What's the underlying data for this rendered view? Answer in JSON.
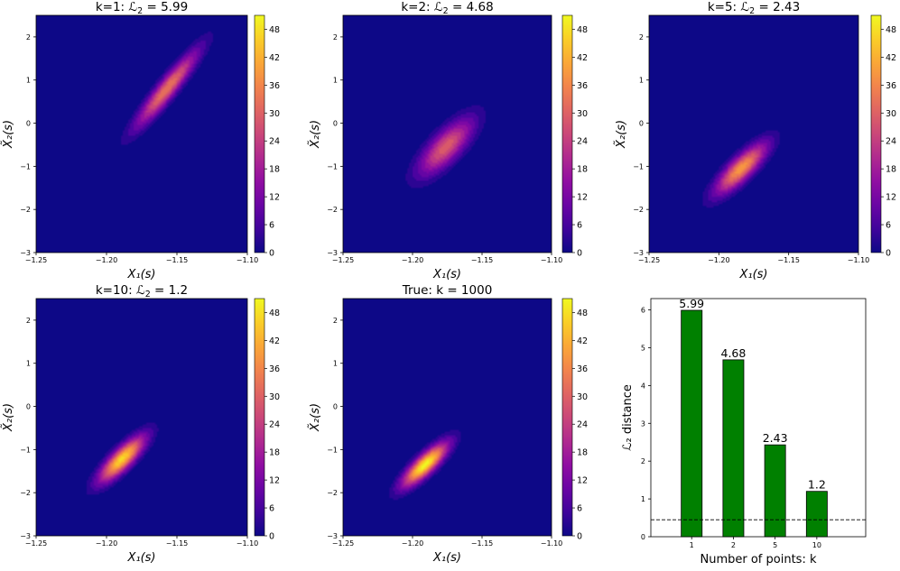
{
  "chart_data": [
    {
      "type": "heatmap",
      "title": "k=1: ℒ₂ = 5.99",
      "title_text": "k=1:",
      "title_value": "5.99",
      "xlabel": "X₁(s)",
      "ylabel": "X̃₂(s)",
      "xlim": [
        -1.25,
        -1.1
      ],
      "ylim": [
        -3,
        2.5
      ],
      "xticks": [
        "−1.25",
        "−1.20",
        "−1.15",
        "−1.10"
      ],
      "yticks": [
        "−3",
        "−2",
        "−1",
        "0",
        "1",
        "2"
      ],
      "colorbar": {
        "min": 0,
        "max": 51,
        "ticks": [
          "0",
          "6",
          "12",
          "18",
          "24",
          "30",
          "36",
          "42",
          "48"
        ]
      },
      "density": {
        "center": [
          -1.157,
          0.8
        ],
        "sigma": [
          0.015,
          0.6
        ],
        "rho": 0.93,
        "peak": 33
      }
    },
    {
      "type": "heatmap",
      "title": "k=2: ℒ₂ = 4.68",
      "title_text": "k=2:",
      "title_value": "4.68",
      "xlabel": "X₁(s)",
      "ylabel": "X̃₂(s)",
      "xlim": [
        -1.25,
        -1.1
      ],
      "ylim": [
        -3,
        2.5
      ],
      "xticks": [
        "−1.25",
        "−1.20",
        "−1.15",
        "−1.10"
      ],
      "yticks": [
        "−3",
        "−2",
        "−1",
        "0",
        "1",
        "2"
      ],
      "colorbar": {
        "min": 0,
        "max": 51,
        "ticks": [
          "0",
          "6",
          "12",
          "18",
          "24",
          "30",
          "36",
          "42",
          "48"
        ]
      },
      "density": {
        "center": [
          -1.176,
          -0.55
        ],
        "sigma": [
          0.0135,
          0.45
        ],
        "rho": 0.75,
        "peak": 29
      }
    },
    {
      "type": "heatmap",
      "title": "k=5: ℒ₂ = 2.43",
      "title_text": "k=5:",
      "title_value": "2.43",
      "xlabel": "X₁(s)",
      "ylabel": "X̃₂(s)",
      "xlim": [
        -1.25,
        -1.1
      ],
      "ylim": [
        -3,
        2.5
      ],
      "xticks": [
        "−1.25",
        "−1.20",
        "−1.15",
        "−1.10"
      ],
      "yticks": [
        "−3",
        "−2",
        "−1",
        "0",
        "1",
        "2"
      ],
      "colorbar": {
        "min": 0,
        "max": 51,
        "ticks": [
          "0",
          "6",
          "12",
          "18",
          "24",
          "30",
          "36",
          "42",
          "48"
        ]
      },
      "density": {
        "center": [
          -1.184,
          -1.05
        ],
        "sigma": [
          0.0125,
          0.4
        ],
        "rho": 0.82,
        "peak": 38
      }
    },
    {
      "type": "heatmap",
      "title": "k=10: ℒ₂ = 1.2",
      "title_text": "k=10:",
      "title_value": "1.2",
      "xlabel": "X₁(s)",
      "ylabel": "X̃₂(s)",
      "xlim": [
        -1.25,
        -1.1
      ],
      "ylim": [
        -3,
        2.5
      ],
      "xticks": [
        "−1.25",
        "−1.20",
        "−1.15",
        "−1.10"
      ],
      "yticks": [
        "−3",
        "−2",
        "−1",
        "0",
        "1",
        "2"
      ],
      "colorbar": {
        "min": 0,
        "max": 51,
        "ticks": [
          "0",
          "6",
          "12",
          "18",
          "24",
          "30",
          "36",
          "42",
          "48"
        ]
      },
      "density": {
        "center": [
          -1.189,
          -1.22
        ],
        "sigma": [
          0.011,
          0.36
        ],
        "rho": 0.82,
        "peak": 46
      }
    },
    {
      "type": "heatmap",
      "title": "True: k = 1000",
      "title_text": "True:",
      "title_value": "k = 1000",
      "xlabel": "X₁(s)",
      "ylabel": "X̃₂(s)",
      "xlim": [
        -1.25,
        -1.1
      ],
      "ylim": [
        -3,
        2.5
      ],
      "xticks": [
        "−1.25",
        "−1.20",
        "−1.15",
        "−1.10"
      ],
      "yticks": [
        "−3",
        "−2",
        "−1",
        "0",
        "1",
        "2"
      ],
      "colorbar": {
        "min": 0,
        "max": 51,
        "ticks": [
          "0",
          "6",
          "12",
          "18",
          "24",
          "30",
          "36",
          "42",
          "48"
        ]
      },
      "density": {
        "center": [
          -1.191,
          -1.35
        ],
        "sigma": [
          0.011,
          0.34
        ],
        "rho": 0.83,
        "peak": 50
      }
    },
    {
      "type": "bar",
      "categories": [
        "1",
        "2",
        "5",
        "10"
      ],
      "values": [
        5.99,
        4.68,
        2.43,
        1.2
      ],
      "value_labels": [
        "5.99",
        "4.68",
        "2.43",
        "1.2"
      ],
      "xlabel": "Number of points: k",
      "ylabel": "ℒ₂ distance",
      "ylim": [
        0,
        6.3
      ],
      "yticks": [
        "0",
        "1",
        "2",
        "3",
        "4",
        "5",
        "6"
      ],
      "reference_line": 0.45,
      "bar_color": "#008000"
    }
  ]
}
